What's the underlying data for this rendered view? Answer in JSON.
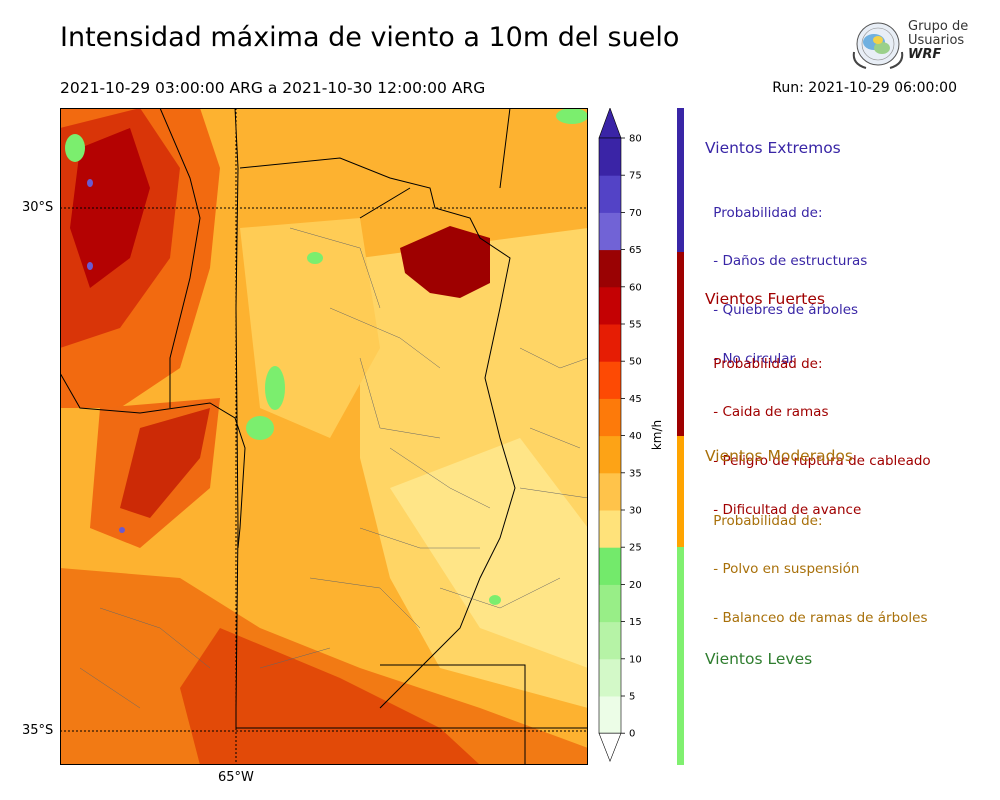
{
  "header": {
    "title": "Intensidad máxima de viento a 10m del suelo",
    "date_range": "2021-10-29 03:00:00 ARG  a  2021-10-30 12:00:00 ARG",
    "run": "Run: 2021-10-29 06:00:00"
  },
  "logo": {
    "line1": "Grupo de",
    "line2": "Usuarios",
    "line3": "WRF"
  },
  "map": {
    "lat_labels": [
      "30°S",
      "35°S"
    ],
    "lon_labels": [
      "65°W"
    ]
  },
  "colorbar": {
    "unit": "km/h",
    "ticks": [
      "0",
      "5",
      "10",
      "15",
      "20",
      "25",
      "30",
      "35",
      "40",
      "45",
      "50",
      "55",
      "60",
      "65",
      "70",
      "75",
      "80"
    ],
    "colors": [
      "#ecfde7",
      "#d3f9c8",
      "#b6f3a6",
      "#98ee87",
      "#73ea6b",
      "#ffe27a",
      "#ffc34a",
      "#fda316",
      "#fd7a0a",
      "#fd4a04",
      "#e61d04",
      "#c40103",
      "#9a0203",
      "#7163d6",
      "#5343c6",
      "#3a24a6"
    ],
    "top_color": "#3a24a6",
    "bottom_color": "#ffffff"
  },
  "categories": [
    {
      "title": "Vientos Extremos",
      "color": "#3926a6",
      "desc_lines": [
        " Probabilidad de:",
        " - Daños de estructuras",
        " - Quiebres de árboles",
        " - No circular"
      ]
    },
    {
      "title": "Vientos Fuertes",
      "color": "#a00000",
      "desc_lines": [
        " Probabilidad de:",
        " - Caida de ramas",
        " - Peligro de ruptura de cableado",
        " - Dificultad de avance"
      ]
    },
    {
      "title": "Vientos Moderados",
      "color": "#a8700a",
      "desc_lines": [
        " Probabilidad de:",
        " - Polvo en suspensión",
        " - Balanceo de ramas de árboles"
      ]
    },
    {
      "title": "Vientos Leves",
      "color": "#2f7d2f",
      "desc_lines": []
    }
  ],
  "strip_colors": [
    "#3926a6",
    "#9e0000",
    "#ffa400",
    "#80f070"
  ]
}
